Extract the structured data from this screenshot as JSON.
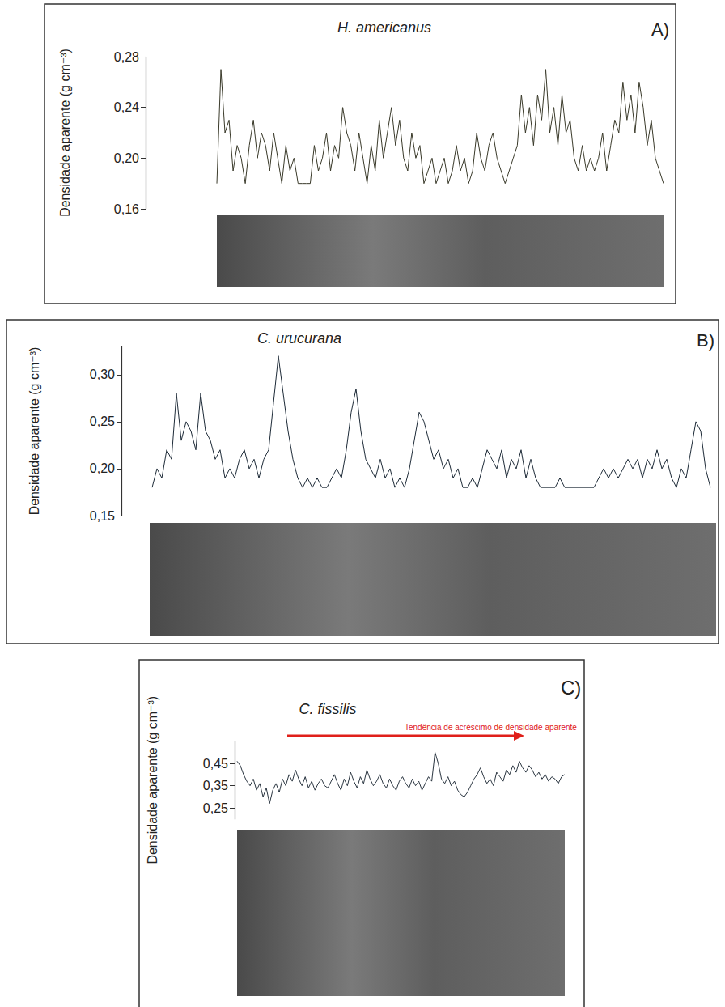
{
  "chart_data": [
    {
      "type": "line",
      "title": "H. americanus",
      "panel": "A)",
      "ylabel": "Densidade aparente (g cm⁻³)",
      "ylim": [
        0.16,
        0.28
      ],
      "yticks": [
        {
          "value": 0.16,
          "label": "0,16"
        },
        {
          "value": 0.2,
          "label": "0,20"
        },
        {
          "value": 0.24,
          "label": "0,24"
        },
        {
          "value": 0.28,
          "label": "0,28"
        }
      ],
      "tick_labels": "y",
      "grid": false,
      "color": "#3a3a2a",
      "values": [
        0.18,
        0.27,
        0.22,
        0.23,
        0.19,
        0.21,
        0.2,
        0.18,
        0.21,
        0.23,
        0.2,
        0.22,
        0.21,
        0.19,
        0.22,
        0.2,
        0.18,
        0.21,
        0.19,
        0.2,
        0.18,
        0.18,
        0.18,
        0.18,
        0.21,
        0.19,
        0.2,
        0.22,
        0.19,
        0.21,
        0.2,
        0.24,
        0.22,
        0.21,
        0.19,
        0.22,
        0.2,
        0.18,
        0.21,
        0.19,
        0.23,
        0.2,
        0.22,
        0.24,
        0.21,
        0.23,
        0.2,
        0.19,
        0.22,
        0.2,
        0.21,
        0.18,
        0.19,
        0.2,
        0.18,
        0.19,
        0.2,
        0.18,
        0.19,
        0.21,
        0.19,
        0.2,
        0.18,
        0.19,
        0.22,
        0.2,
        0.19,
        0.21,
        0.22,
        0.2,
        0.19,
        0.18,
        0.19,
        0.2,
        0.21,
        0.25,
        0.22,
        0.24,
        0.21,
        0.25,
        0.23,
        0.27,
        0.22,
        0.24,
        0.21,
        0.25,
        0.22,
        0.23,
        0.2,
        0.19,
        0.21,
        0.19,
        0.2,
        0.19,
        0.2,
        0.22,
        0.19,
        0.21,
        0.23,
        0.22,
        0.26,
        0.23,
        0.25,
        0.22,
        0.26,
        0.24,
        0.21,
        0.23,
        0.2,
        0.19,
        0.18
      ]
    },
    {
      "type": "line",
      "title": "C. urucurana",
      "panel": "B)",
      "ylabel": "Densidade aparente (g cm⁻³)",
      "ylim": [
        0.15,
        0.33
      ],
      "yticks": [
        {
          "value": 0.15,
          "label": "0,15"
        },
        {
          "value": 0.2,
          "label": "0,20"
        },
        {
          "value": 0.25,
          "label": "0,25"
        },
        {
          "value": 0.3,
          "label": "0,30"
        }
      ],
      "tick_labels": "y",
      "grid": false,
      "color": "#1e2b38",
      "values": [
        0.18,
        0.2,
        0.19,
        0.22,
        0.21,
        0.28,
        0.23,
        0.25,
        0.24,
        0.22,
        0.28,
        0.24,
        0.23,
        0.21,
        0.22,
        0.19,
        0.2,
        0.19,
        0.21,
        0.22,
        0.2,
        0.21,
        0.19,
        0.21,
        0.22,
        0.27,
        0.32,
        0.28,
        0.24,
        0.21,
        0.19,
        0.18,
        0.19,
        0.18,
        0.19,
        0.18,
        0.18,
        0.19,
        0.2,
        0.19,
        0.22,
        0.26,
        0.285,
        0.24,
        0.21,
        0.2,
        0.19,
        0.21,
        0.19,
        0.2,
        0.18,
        0.19,
        0.18,
        0.2,
        0.23,
        0.26,
        0.25,
        0.23,
        0.21,
        0.22,
        0.2,
        0.21,
        0.19,
        0.2,
        0.18,
        0.18,
        0.19,
        0.18,
        0.2,
        0.22,
        0.21,
        0.2,
        0.22,
        0.19,
        0.21,
        0.2,
        0.22,
        0.19,
        0.21,
        0.19,
        0.18,
        0.18,
        0.18,
        0.18,
        0.19,
        0.18,
        0.18,
        0.18,
        0.18,
        0.18,
        0.18,
        0.18,
        0.19,
        0.2,
        0.19,
        0.2,
        0.19,
        0.2,
        0.21,
        0.2,
        0.21,
        0.19,
        0.21,
        0.2,
        0.22,
        0.2,
        0.21,
        0.19,
        0.18,
        0.2,
        0.19,
        0.22,
        0.25,
        0.24,
        0.2,
        0.18
      ]
    },
    {
      "type": "line",
      "title": "C. fissilis",
      "panel": "C)",
      "annotation": "Tendência de acréscimo de densidade aparente",
      "ylabel": "Densidade aparente (g cm⁻³)",
      "ylim": [
        0.2,
        0.55
      ],
      "yticks": [
        {
          "value": 0.25,
          "label": "0,25"
        },
        {
          "value": 0.35,
          "label": "0,35"
        },
        {
          "value": 0.45,
          "label": "0,45"
        }
      ],
      "tick_labels": "y",
      "grid": false,
      "color": "#2a3540",
      "values": [
        0.46,
        0.44,
        0.4,
        0.37,
        0.35,
        0.38,
        0.33,
        0.36,
        0.3,
        0.34,
        0.27,
        0.33,
        0.36,
        0.32,
        0.38,
        0.35,
        0.4,
        0.37,
        0.42,
        0.38,
        0.35,
        0.39,
        0.34,
        0.37,
        0.33,
        0.36,
        0.38,
        0.35,
        0.34,
        0.37,
        0.4,
        0.36,
        0.33,
        0.38,
        0.35,
        0.41,
        0.37,
        0.34,
        0.39,
        0.36,
        0.42,
        0.38,
        0.35,
        0.37,
        0.4,
        0.36,
        0.34,
        0.38,
        0.35,
        0.33,
        0.37,
        0.39,
        0.36,
        0.34,
        0.38,
        0.35,
        0.37,
        0.33,
        0.36,
        0.39,
        0.37,
        0.5,
        0.45,
        0.38,
        0.36,
        0.39,
        0.35,
        0.37,
        0.33,
        0.31,
        0.3,
        0.32,
        0.35,
        0.38,
        0.4,
        0.43,
        0.39,
        0.36,
        0.38,
        0.35,
        0.41,
        0.39,
        0.37,
        0.42,
        0.4,
        0.44,
        0.41,
        0.46,
        0.43,
        0.41,
        0.44,
        0.42,
        0.39,
        0.41,
        0.38,
        0.4,
        0.37,
        0.39,
        0.38,
        0.36,
        0.39,
        0.4
      ]
    }
  ]
}
